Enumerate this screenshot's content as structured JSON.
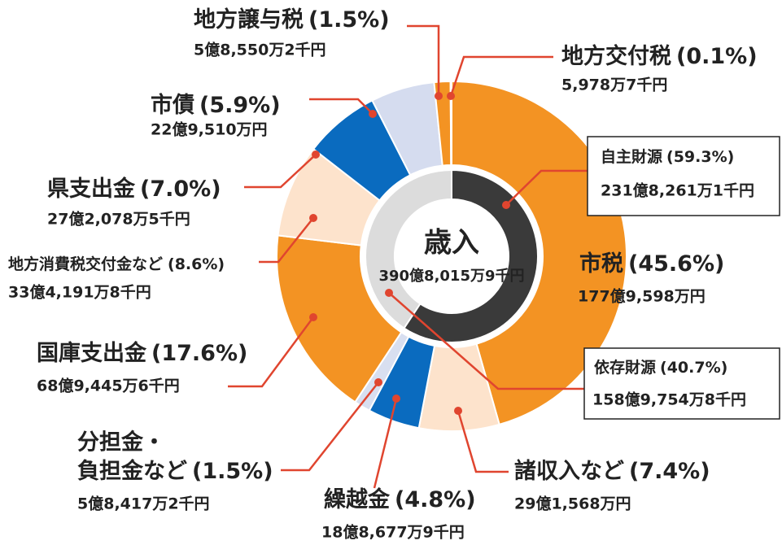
{
  "chart_data": {
    "type": "donut",
    "center_label": "歳入",
    "total": "390億8,015万9千円",
    "categories": [
      "市税",
      "諸収入など",
      "繰越金",
      [
        "分担金・",
        "負担金など"
      ],
      "国庫支出金",
      "地方消費税交付金など",
      "県支出金",
      "市債",
      "地方譲与税",
      "地方交付税"
    ],
    "values": [
      45.6,
      7.4,
      4.8,
      1.5,
      17.6,
      8.6,
      7.0,
      5.9,
      1.5,
      0.1
    ],
    "value_labels": [
      "(45.6%)",
      "(7.4%)",
      "(4.8%)",
      "(1.5%)",
      "(17.6%)",
      "(8.6%)",
      "(7.0%)",
      "(5.9%)",
      "(1.5%)",
      "(0.1%)"
    ],
    "amounts": [
      "177億9,598万円",
      "29億1,568万円",
      "18億8,677万9千円",
      "5億8,417万2千円",
      "68億9,445万6千円",
      "33億4,191万8千円",
      "27億2,078万5千円",
      "22億9,510万円",
      "5億8,550万2千円",
      "5,978万7千円"
    ],
    "colors": [
      "#f39323",
      "#fde3cc",
      "#0a6bbf",
      "#d8dff0",
      "#f39323",
      "#fde3cc",
      "#0a6bbf",
      "#d5dcef",
      "#f39323",
      "#fde3cc"
    ],
    "inner": {
      "categories": [
        "自主財源",
        "依存財源"
      ],
      "values": [
        59.3,
        40.7
      ],
      "value_labels": [
        "(59.3%)",
        "(40.7%)"
      ],
      "amounts": [
        "231億8,261万1千円",
        "158億9,754万8千円"
      ],
      "colors": [
        "#3a3a3a",
        "#dcdcdc"
      ]
    }
  }
}
